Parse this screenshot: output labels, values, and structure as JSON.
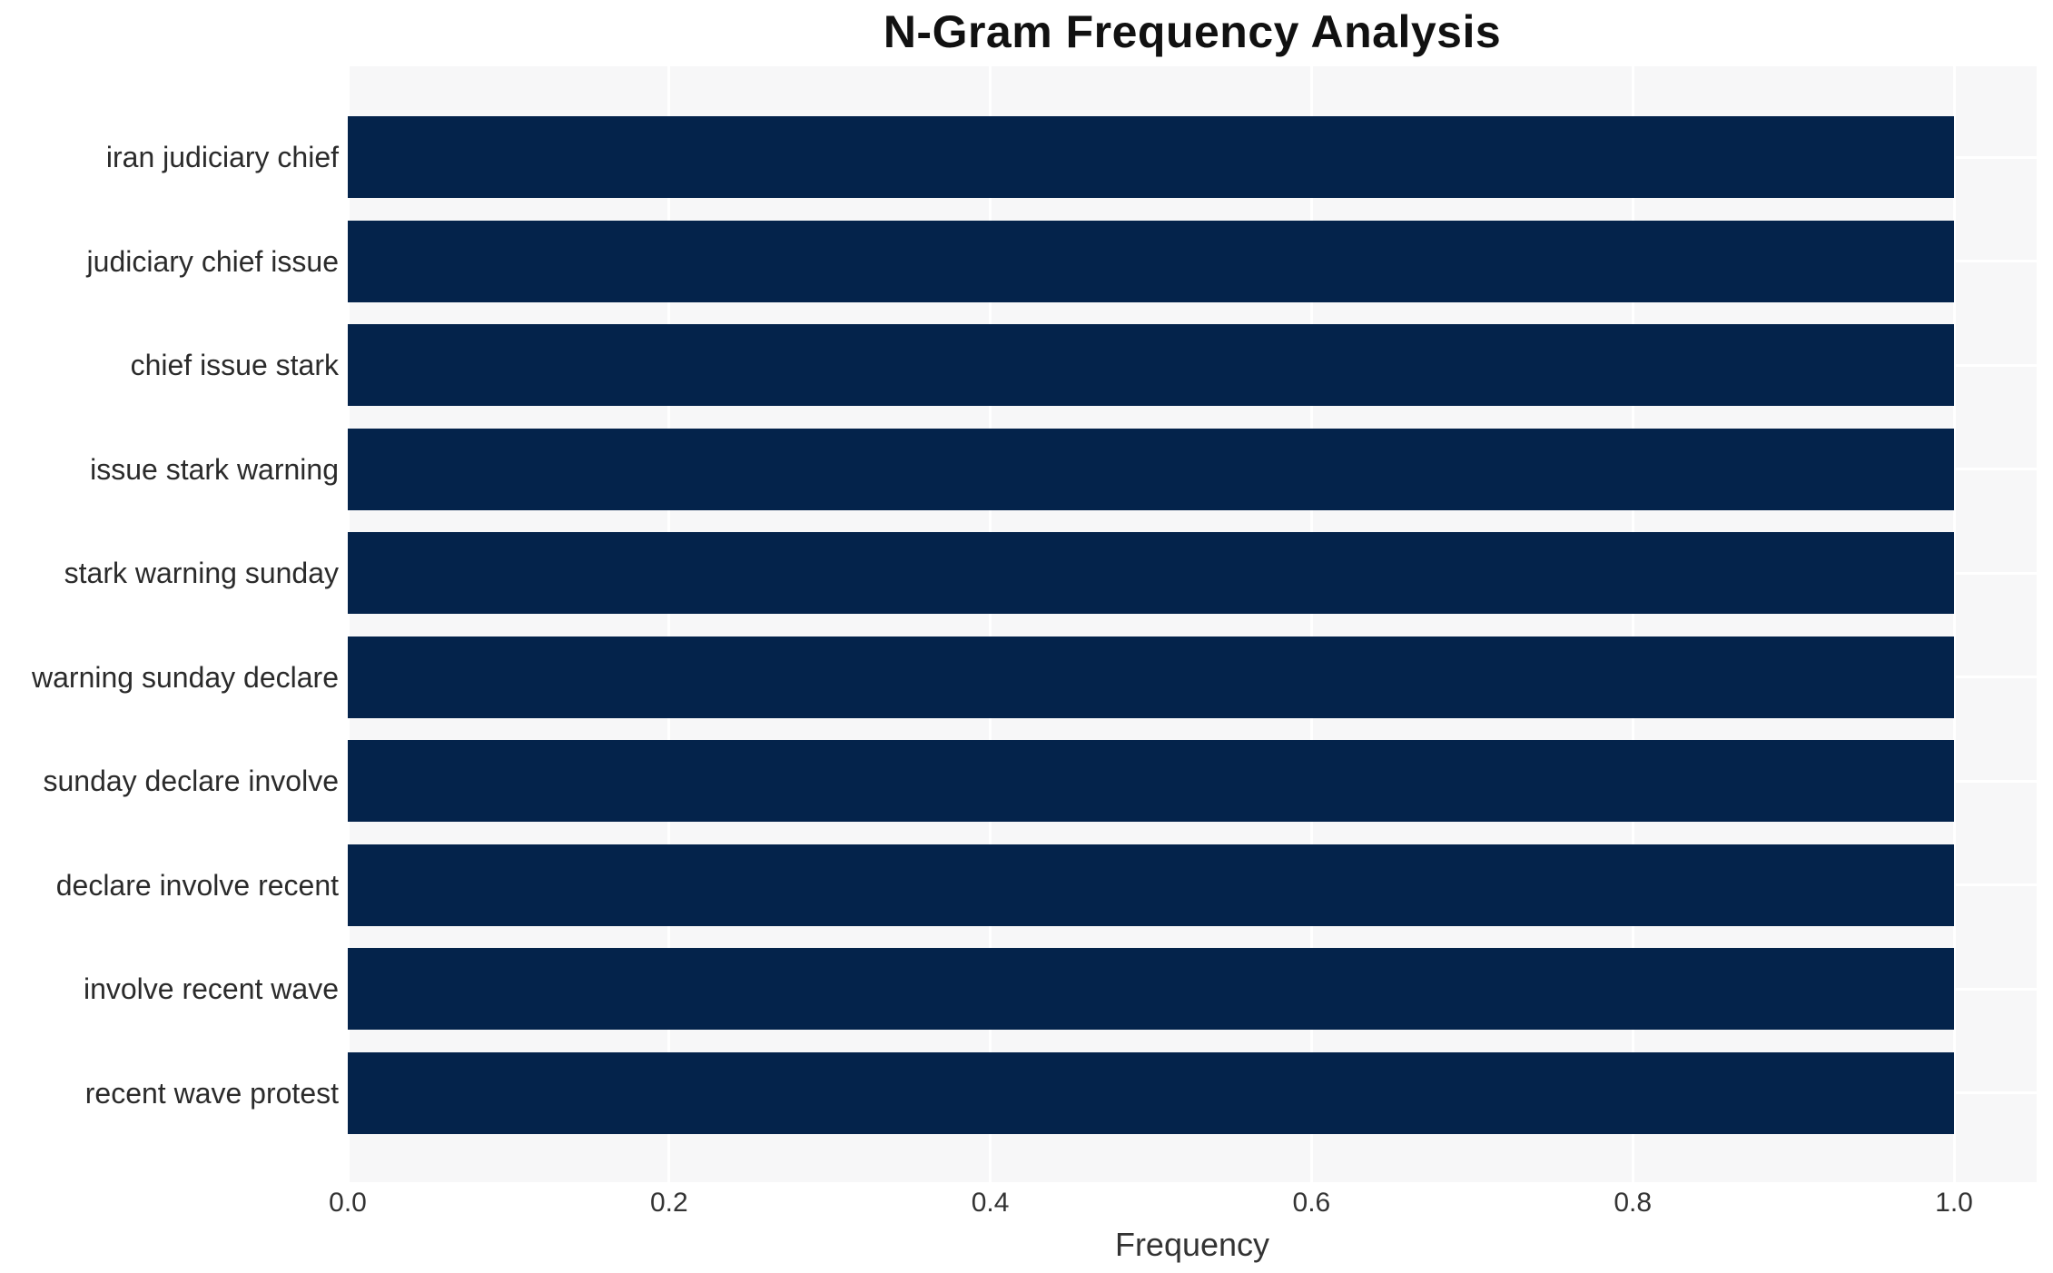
{
  "title": "N-Gram Frequency Analysis",
  "chart_data": {
    "type": "bar",
    "orientation": "horizontal",
    "title": "N-Gram Frequency Analysis",
    "xlabel": "Frequency",
    "ylabel": "",
    "categories": [
      "iran judiciary chief",
      "judiciary chief issue",
      "chief issue stark",
      "issue stark warning",
      "stark warning sunday",
      "warning sunday declare",
      "sunday declare involve",
      "declare involve recent",
      "involve recent wave",
      "recent wave protest"
    ],
    "values": [
      1.0,
      1.0,
      1.0,
      1.0,
      1.0,
      1.0,
      1.0,
      1.0,
      1.0,
      1.0
    ],
    "x_ticks": [
      0.0,
      0.2,
      0.4,
      0.6,
      0.8,
      1.0
    ],
    "x_tick_labels": [
      "0.0",
      "0.2",
      "0.4",
      "0.6",
      "0.8",
      "1.0"
    ],
    "xlim": [
      0.0,
      1.05
    ],
    "grid": true,
    "legend": false,
    "colors": {
      "bar": "#04234b",
      "plot_bg": "#f7f7f8",
      "grid": "#ffffff",
      "text": "#333333",
      "figure_bg": "#ffffff"
    }
  }
}
